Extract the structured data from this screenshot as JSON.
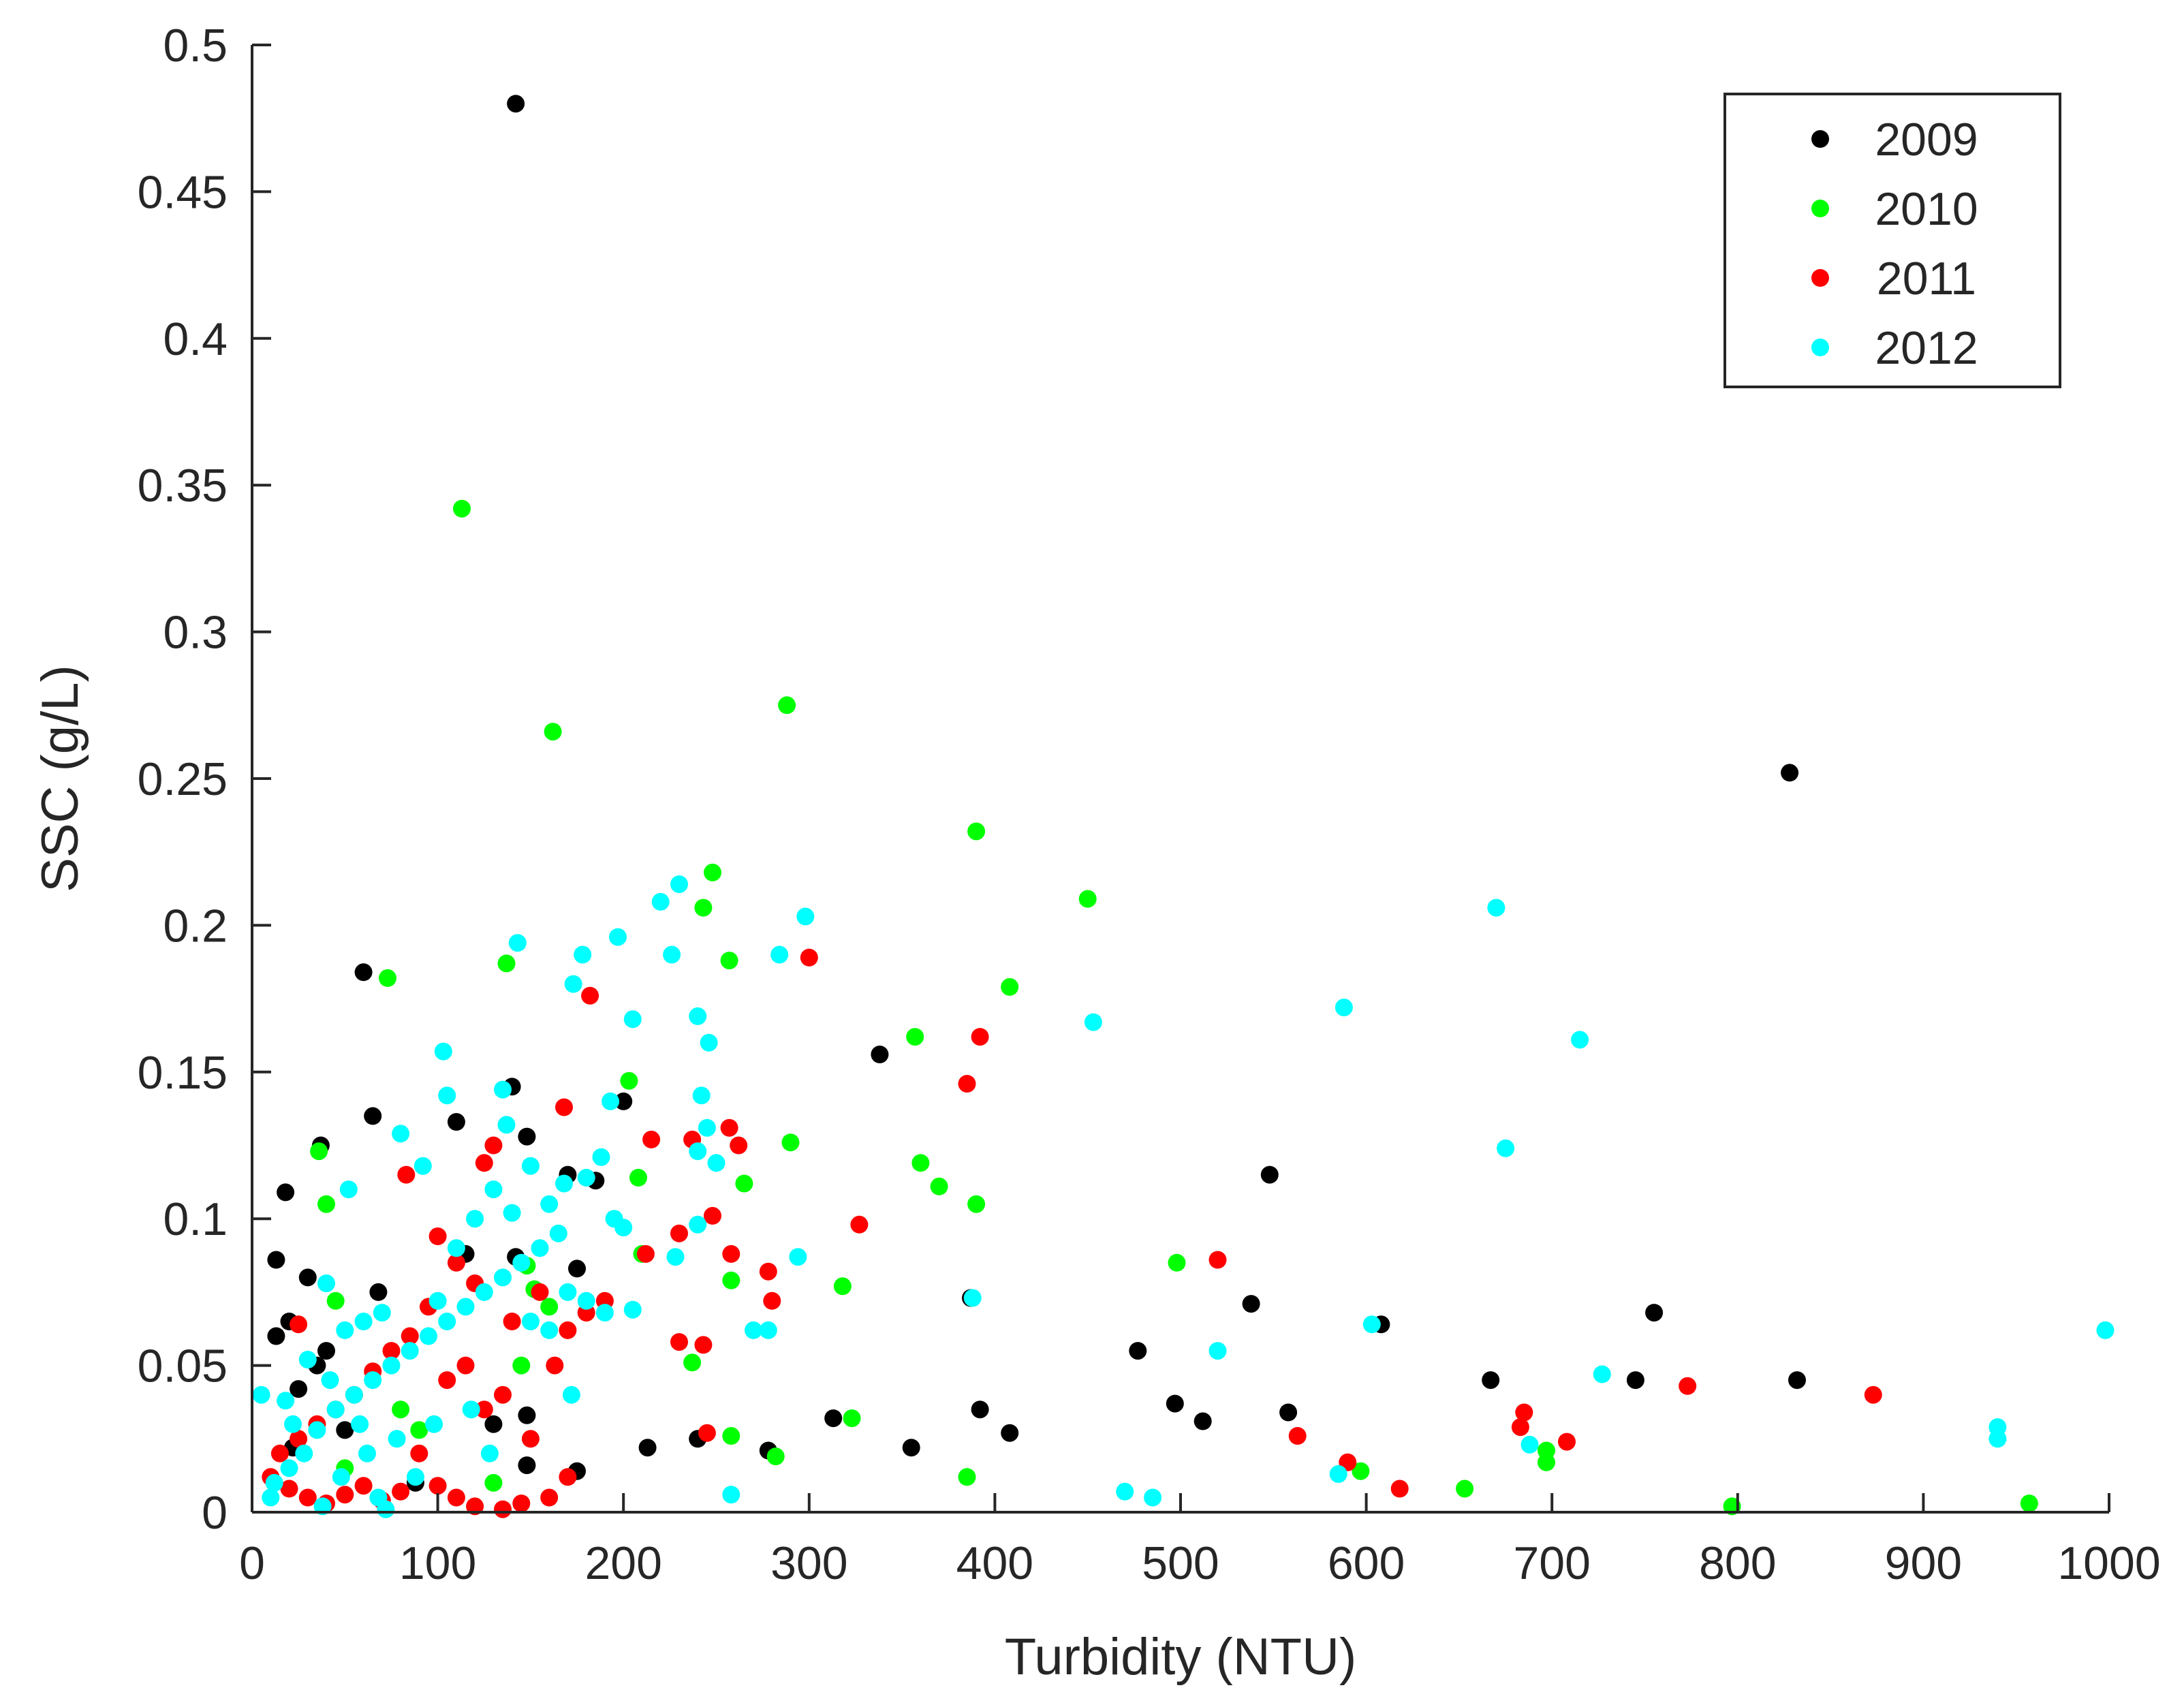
{
  "chart_data": {
    "type": "scatter",
    "xlabel": "Turbidity (NTU)",
    "ylabel": "SSC (g/L)",
    "xlim": [
      0,
      1000
    ],
    "ylim": [
      0,
      0.5
    ],
    "xticks": [
      0,
      100,
      200,
      300,
      400,
      500,
      600,
      700,
      800,
      900,
      1000
    ],
    "yticks": [
      0,
      0.05,
      0.1,
      0.15,
      0.2,
      0.25,
      0.3,
      0.35,
      0.4,
      0.45,
      0.5
    ],
    "xtick_labels": [
      "0",
      "100",
      "200",
      "300",
      "400",
      "500",
      "600",
      "700",
      "800",
      "900",
      "1000"
    ],
    "ytick_labels": [
      "0",
      "0.05",
      "0.1",
      "0.15",
      "0.2",
      "0.25",
      "0.3",
      "0.35",
      "0.4",
      "0.45",
      "0.5"
    ],
    "grid": false,
    "legend_position": "top-right",
    "series": [
      {
        "name": "2009",
        "color": "#000000",
        "points": [
          [
            142,
            0.48
          ],
          [
            60,
            0.184
          ],
          [
            65,
            0.135
          ],
          [
            37,
            0.125
          ],
          [
            140,
            0.145
          ],
          [
            110,
            0.133
          ],
          [
            148,
            0.128
          ],
          [
            18,
            0.109
          ],
          [
            13,
            0.086
          ],
          [
            30,
            0.08
          ],
          [
            13,
            0.06
          ],
          [
            20,
            0.065
          ],
          [
            40,
            0.055
          ],
          [
            68,
            0.075
          ],
          [
            185,
            0.113
          ],
          [
            200,
            0.14
          ],
          [
            175,
            0.083
          ],
          [
            142,
            0.087
          ],
          [
            170,
            0.115
          ],
          [
            115,
            0.088
          ],
          [
            148,
            0.033
          ],
          [
            148,
            0.016
          ],
          [
            175,
            0.014
          ],
          [
            213,
            0.022
          ],
          [
            240,
            0.025
          ],
          [
            278,
            0.021
          ],
          [
            313,
            0.032
          ],
          [
            338,
            0.156
          ],
          [
            355,
            0.022
          ],
          [
            387,
            0.073
          ],
          [
            392,
            0.035
          ],
          [
            408,
            0.027
          ],
          [
            477,
            0.055
          ],
          [
            497,
            0.037
          ],
          [
            512,
            0.031
          ],
          [
            538,
            0.071
          ],
          [
            548,
            0.115
          ],
          [
            558,
            0.034
          ],
          [
            608,
            0.064
          ],
          [
            667,
            0.045
          ],
          [
            745,
            0.045
          ],
          [
            755,
            0.068
          ],
          [
            828,
            0.252
          ],
          [
            832,
            0.045
          ],
          [
            25,
            0.042
          ],
          [
            35,
            0.05
          ],
          [
            22,
            0.022
          ],
          [
            50,
            0.028
          ],
          [
            130,
            0.03
          ],
          [
            88,
            0.01
          ]
        ]
      },
      {
        "name": "2010",
        "color": "#00ff00",
        "points": [
          [
            113,
            0.342
          ],
          [
            162,
            0.266
          ],
          [
            288,
            0.275
          ],
          [
            390,
            0.232
          ],
          [
            450,
            0.209
          ],
          [
            248,
            0.218
          ],
          [
            243,
            0.206
          ],
          [
            257,
            0.188
          ],
          [
            408,
            0.179
          ],
          [
            137,
            0.187
          ],
          [
            73,
            0.182
          ],
          [
            357,
            0.162
          ],
          [
            360,
            0.119
          ],
          [
            370,
            0.111
          ],
          [
            390,
            0.105
          ],
          [
            290,
            0.126
          ],
          [
            265,
            0.112
          ],
          [
            203,
            0.147
          ],
          [
            208,
            0.114
          ],
          [
            210,
            0.088
          ],
          [
            258,
            0.079
          ],
          [
            318,
            0.077
          ],
          [
            498,
            0.085
          ],
          [
            36,
            0.123
          ],
          [
            40,
            0.105
          ],
          [
            45,
            0.072
          ],
          [
            148,
            0.084
          ],
          [
            152,
            0.076
          ],
          [
            145,
            0.05
          ],
          [
            160,
            0.07
          ],
          [
            237,
            0.051
          ],
          [
            323,
            0.032
          ],
          [
            258,
            0.026
          ],
          [
            282,
            0.019
          ],
          [
            385,
            0.012
          ],
          [
            597,
            0.014
          ],
          [
            653,
            0.008
          ],
          [
            697,
            0.021
          ],
          [
            697,
            0.017
          ],
          [
            797,
            0.002
          ],
          [
            957,
            0.003
          ],
          [
            50,
            0.015
          ],
          [
            90,
            0.028
          ],
          [
            130,
            0.01
          ],
          [
            80,
            0.035
          ]
        ]
      },
      {
        "name": "2011",
        "color": "#ff0000",
        "points": [
          [
            300,
            0.189
          ],
          [
            182,
            0.176
          ],
          [
            392,
            0.162
          ],
          [
            385,
            0.146
          ],
          [
            168,
            0.138
          ],
          [
            257,
            0.131
          ],
          [
            215,
            0.127
          ],
          [
            237,
            0.127
          ],
          [
            262,
            0.125
          ],
          [
            83,
            0.115
          ],
          [
            125,
            0.119
          ],
          [
            248,
            0.101
          ],
          [
            327,
            0.098
          ],
          [
            230,
            0.095
          ],
          [
            258,
            0.088
          ],
          [
            278,
            0.082
          ],
          [
            212,
            0.088
          ],
          [
            280,
            0.072
          ],
          [
            520,
            0.086
          ],
          [
            230,
            0.058
          ],
          [
            243,
            0.057
          ],
          [
            163,
            0.05
          ],
          [
            245,
            0.027
          ],
          [
            563,
            0.026
          ],
          [
            590,
            0.017
          ],
          [
            618,
            0.008
          ],
          [
            683,
            0.029
          ],
          [
            685,
            0.034
          ],
          [
            708,
            0.024
          ],
          [
            773,
            0.043
          ],
          [
            873,
            0.04
          ],
          [
            100,
            0.094
          ],
          [
            110,
            0.085
          ],
          [
            120,
            0.078
          ],
          [
            140,
            0.065
          ],
          [
            155,
            0.075
          ],
          [
            170,
            0.062
          ],
          [
            180,
            0.068
          ],
          [
            190,
            0.072
          ],
          [
            95,
            0.07
          ],
          [
            85,
            0.06
          ],
          [
            75,
            0.055
          ],
          [
            65,
            0.048
          ],
          [
            55,
            0.04
          ],
          [
            45,
            0.035
          ],
          [
            35,
            0.03
          ],
          [
            25,
            0.025
          ],
          [
            15,
            0.02
          ],
          [
            10,
            0.012
          ],
          [
            20,
            0.008
          ],
          [
            30,
            0.005
          ],
          [
            40,
            0.003
          ],
          [
            50,
            0.006
          ],
          [
            60,
            0.009
          ],
          [
            70,
            0.004
          ],
          [
            80,
            0.007
          ],
          [
            100,
            0.009
          ],
          [
            110,
            0.005
          ],
          [
            120,
            0.002
          ],
          [
            135,
            0.001
          ],
          [
            145,
            0.003
          ],
          [
            160,
            0.005
          ],
          [
            170,
            0.012
          ],
          [
            105,
            0.045
          ],
          [
            115,
            0.05
          ],
          [
            125,
            0.035
          ],
          [
            135,
            0.04
          ],
          [
            90,
            0.02
          ],
          [
            150,
            0.025
          ],
          [
            25,
            0.064
          ],
          [
            130,
            0.125
          ]
        ]
      },
      {
        "name": "2012",
        "color": "#00ffff",
        "points": [
          [
            230,
            0.214
          ],
          [
            220,
            0.208
          ],
          [
            197,
            0.196
          ],
          [
            298,
            0.203
          ],
          [
            143,
            0.194
          ],
          [
            178,
            0.19
          ],
          [
            226,
            0.19
          ],
          [
            284,
            0.19
          ],
          [
            173,
            0.18
          ],
          [
            205,
            0.168
          ],
          [
            240,
            0.169
          ],
          [
            246,
            0.16
          ],
          [
            103,
            0.157
          ],
          [
            105,
            0.142
          ],
          [
            135,
            0.144
          ],
          [
            242,
            0.142
          ],
          [
            193,
            0.14
          ],
          [
            670,
            0.206
          ],
          [
            588,
            0.172
          ],
          [
            453,
            0.167
          ],
          [
            715,
            0.161
          ],
          [
            675,
            0.124
          ],
          [
            80,
            0.129
          ],
          [
            92,
            0.118
          ],
          [
            188,
            0.121
          ],
          [
            240,
            0.123
          ],
          [
            245,
            0.131
          ],
          [
            250,
            0.119
          ],
          [
            52,
            0.11
          ],
          [
            137,
            0.132
          ],
          [
            150,
            0.118
          ],
          [
            168,
            0.112
          ],
          [
            180,
            0.114
          ],
          [
            195,
            0.1
          ],
          [
            200,
            0.097
          ],
          [
            240,
            0.098
          ],
          [
            294,
            0.087
          ],
          [
            228,
            0.087
          ],
          [
            205,
            0.069
          ],
          [
            270,
            0.062
          ],
          [
            278,
            0.062
          ],
          [
            388,
            0.073
          ],
          [
            603,
            0.064
          ],
          [
            520,
            0.055
          ],
          [
            727,
            0.047
          ],
          [
            940,
            0.029
          ],
          [
            940,
            0.025
          ],
          [
            998,
            0.062
          ],
          [
            688,
            0.023
          ],
          [
            585,
            0.013
          ],
          [
            470,
            0.007
          ],
          [
            485,
            0.005
          ],
          [
            258,
            0.006
          ],
          [
            5,
            0.04
          ],
          [
            18,
            0.038
          ],
          [
            22,
            0.03
          ],
          [
            28,
            0.02
          ],
          [
            35,
            0.028
          ],
          [
            45,
            0.035
          ],
          [
            55,
            0.04
          ],
          [
            65,
            0.045
          ],
          [
            75,
            0.05
          ],
          [
            85,
            0.055
          ],
          [
            95,
            0.06
          ],
          [
            105,
            0.065
          ],
          [
            115,
            0.07
          ],
          [
            125,
            0.075
          ],
          [
            135,
            0.08
          ],
          [
            145,
            0.085
          ],
          [
            155,
            0.09
          ],
          [
            165,
            0.095
          ],
          [
            60,
            0.065
          ],
          [
            70,
            0.068
          ],
          [
            40,
            0.078
          ],
          [
            50,
            0.062
          ],
          [
            30,
            0.052
          ],
          [
            100,
            0.072
          ],
          [
            110,
            0.09
          ],
          [
            120,
            0.1
          ],
          [
            130,
            0.11
          ],
          [
            140,
            0.102
          ],
          [
            160,
            0.105
          ],
          [
            170,
            0.075
          ],
          [
            180,
            0.072
          ],
          [
            190,
            0.068
          ],
          [
            150,
            0.065
          ],
          [
            160,
            0.062
          ],
          [
            172,
            0.04
          ],
          [
            12,
            0.01
          ],
          [
            20,
            0.015
          ],
          [
            48,
            0.012
          ],
          [
            68,
            0.005
          ],
          [
            72,
            0.001
          ],
          [
            38,
            0.002
          ],
          [
            88,
            0.012
          ],
          [
            10,
            0.005
          ],
          [
            58,
            0.03
          ],
          [
            78,
            0.025
          ],
          [
            98,
            0.03
          ],
          [
            118,
            0.035
          ],
          [
            128,
            0.02
          ],
          [
            42,
            0.045
          ],
          [
            62,
            0.02
          ]
        ]
      }
    ]
  }
}
